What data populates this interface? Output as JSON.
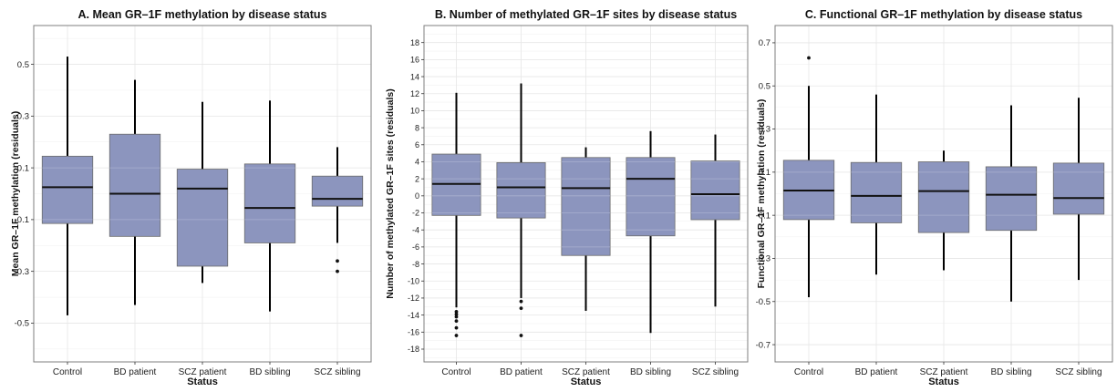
{
  "chart_data": [
    {
      "type": "box",
      "title": "A. Mean GR–1F methylation by disease status",
      "xlabel": "Status",
      "ylabel": "Mean GR–1F methylation (residuals)",
      "categories": [
        "Control",
        "BD patient",
        "SCZ patient",
        "BD sibling",
        "SCZ sibling"
      ],
      "ylim": [
        -0.65,
        0.65
      ],
      "yticks": [
        -0.5,
        -0.3,
        -0.1,
        0.1,
        0.3,
        0.5
      ],
      "ytick_labels": [
        "-0.5",
        "-0.3",
        "-0.1",
        "0.1",
        "0.3",
        "0.5"
      ],
      "boxes": [
        {
          "q1": -0.115,
          "median": 0.025,
          "q3": 0.145,
          "whisker_low": -0.47,
          "whisker_high": 0.53,
          "outliers": []
        },
        {
          "q1": -0.165,
          "median": 0.0,
          "q3": 0.23,
          "whisker_low": -0.43,
          "whisker_high": 0.44,
          "outliers": []
        },
        {
          "q1": -0.28,
          "median": 0.02,
          "q3": 0.095,
          "whisker_low": -0.345,
          "whisker_high": 0.355,
          "outliers": []
        },
        {
          "q1": -0.19,
          "median": -0.055,
          "q3": 0.115,
          "whisker_low": -0.455,
          "whisker_high": 0.36,
          "outliers": []
        },
        {
          "q1": -0.048,
          "median": -0.02,
          "q3": 0.068,
          "whisker_low": -0.19,
          "whisker_high": 0.18,
          "outliers": [
            -0.26,
            -0.3
          ]
        }
      ],
      "grid": true
    },
    {
      "type": "box",
      "title": "B. Number of methylated GR–1F sites by disease status",
      "xlabel": "Status",
      "ylabel": "Number of methylated GR–1F sites (residuals)",
      "categories": [
        "Control",
        "BD patient",
        "SCZ patient",
        "BD sibling",
        "SCZ sibling"
      ],
      "ylim": [
        -19.5,
        20
      ],
      "yticks": [
        -18,
        -16,
        -14,
        -12,
        -10,
        -8,
        -6,
        -4,
        -2,
        0,
        2,
        4,
        6,
        8,
        10,
        12,
        14,
        16,
        18
      ],
      "ytick_labels": [
        "-18",
        "-16",
        "-14",
        "-12",
        "-10",
        "-8",
        "-6",
        "-4",
        "-2",
        "0",
        "2",
        "4",
        "6",
        "8",
        "10",
        "12",
        "14",
        "16",
        "18"
      ],
      "boxes": [
        {
          "q1": -2.3,
          "median": 1.4,
          "q3": 4.9,
          "whisker_low": -13.1,
          "whisker_high": 12.1,
          "outliers": [
            -13.6,
            -13.9,
            -14.2,
            -14.7,
            -15.5,
            -16.4
          ]
        },
        {
          "q1": -2.6,
          "median": 1.0,
          "q3": 3.9,
          "whisker_low": -12.0,
          "whisker_high": 13.2,
          "outliers": [
            -12.4,
            -13.2,
            -16.4
          ]
        },
        {
          "q1": -7.0,
          "median": 0.9,
          "q3": 4.5,
          "whisker_low": -13.5,
          "whisker_high": 5.7,
          "outliers": []
        },
        {
          "q1": -4.7,
          "median": 2.0,
          "q3": 4.5,
          "whisker_low": -16.1,
          "whisker_high": 7.6,
          "outliers": []
        },
        {
          "q1": -2.8,
          "median": 0.2,
          "q3": 4.1,
          "whisker_low": -13.0,
          "whisker_high": 7.2,
          "outliers": []
        }
      ],
      "grid": true
    },
    {
      "type": "box",
      "title": "C. Functional GR–1F methylation by disease status",
      "xlabel": "Status",
      "ylabel": "Functional GR–1F methylation (residuals)",
      "categories": [
        "Control",
        "BD patient",
        "SCZ patient",
        "BD sibling",
        "SCZ sibling"
      ],
      "ylim": [
        -0.78,
        0.78
      ],
      "yticks": [
        -0.7,
        -0.5,
        -0.3,
        -0.1,
        0.1,
        0.3,
        0.5,
        0.7
      ],
      "ytick_labels": [
        "-0.7",
        "-0.5",
        "-0.3",
        "-0.1",
        "0.1",
        "0.3",
        "0.5",
        "0.7"
      ],
      "boxes": [
        {
          "q1": -0.12,
          "median": 0.015,
          "q3": 0.155,
          "whisker_low": -0.48,
          "whisker_high": 0.5,
          "outliers": [
            0.63
          ]
        },
        {
          "q1": -0.135,
          "median": -0.01,
          "q3": 0.145,
          "whisker_low": -0.375,
          "whisker_high": 0.46,
          "outliers": []
        },
        {
          "q1": -0.18,
          "median": 0.012,
          "q3": 0.148,
          "whisker_low": -0.355,
          "whisker_high": 0.2,
          "outliers": []
        },
        {
          "q1": -0.17,
          "median": -0.005,
          "q3": 0.125,
          "whisker_low": -0.5,
          "whisker_high": 0.41,
          "outliers": []
        },
        {
          "q1": -0.095,
          "median": -0.02,
          "q3": 0.142,
          "whisker_low": -0.4,
          "whisker_high": 0.445,
          "outliers": []
        }
      ],
      "grid": true
    }
  ],
  "colors": {
    "box_fill": "#8c95be",
    "box_stroke": "#6b6b6b",
    "median": "#111111",
    "whisker": "#000000",
    "grid": "#e6e6e6",
    "frame": "#7f7f7f"
  }
}
